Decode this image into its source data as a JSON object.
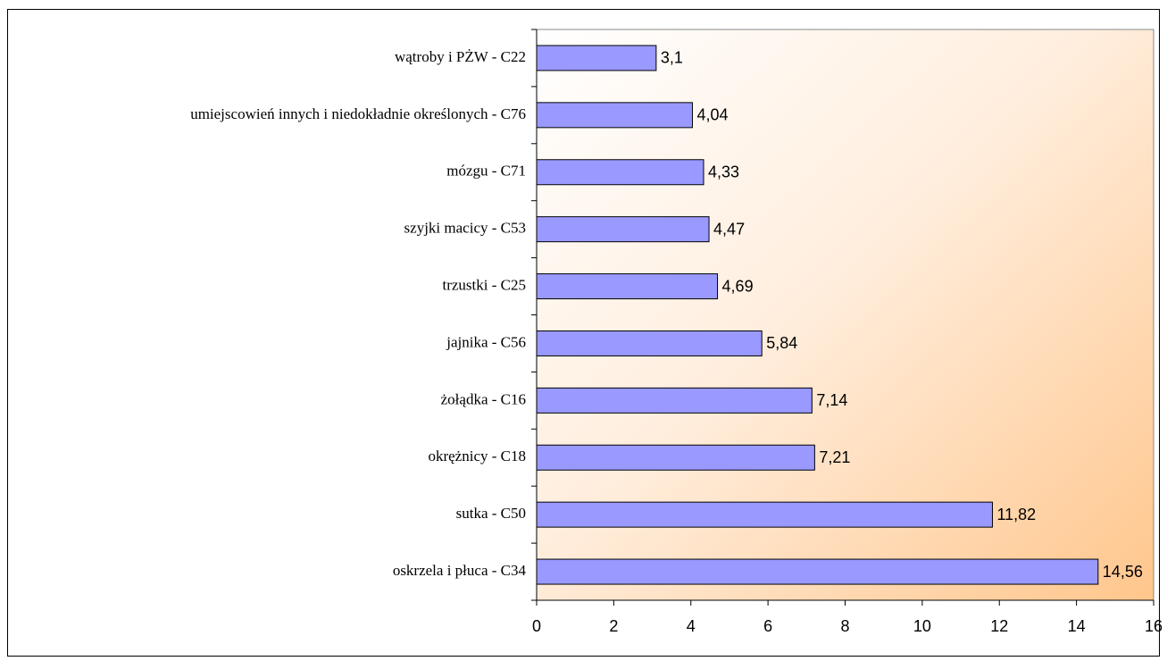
{
  "chart_data": {
    "type": "bar",
    "orientation": "horizontal",
    "categories": [
      "wątroby i PŻW - C22",
      "umiejscowień innych i niedokładnie określonych - C76",
      "mózgu - C71",
      "szyjki macicy - C53",
      "trzustki - C25",
      "jajnika - C56",
      "żołądka - C16",
      "okrężnicy - C18",
      "sutka - C50",
      "oskrzela i płuca - C34"
    ],
    "values": [
      3.1,
      4.04,
      4.33,
      4.47,
      4.69,
      5.84,
      7.14,
      7.21,
      11.82,
      14.56
    ],
    "value_labels": [
      "3,1",
      "4,04",
      "4,33",
      "4,47",
      "4,69",
      "5,84",
      "7,14",
      "7,21",
      "11,82",
      "14,56"
    ],
    "color": "#9999ff",
    "xlim": [
      0,
      16
    ],
    "xticks": [
      0,
      2,
      4,
      6,
      8,
      10,
      12,
      14,
      16
    ]
  }
}
